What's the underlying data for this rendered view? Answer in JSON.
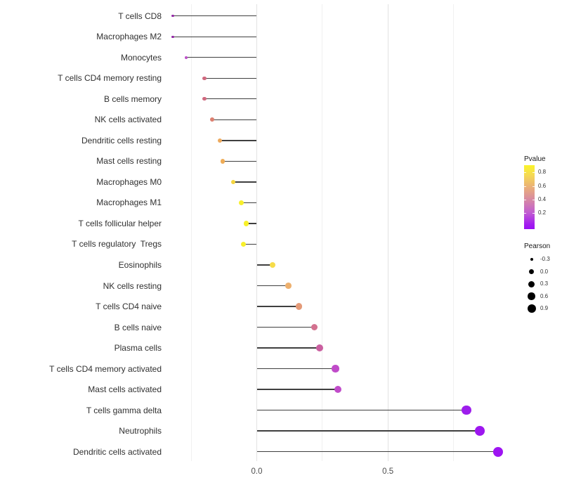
{
  "chart_data": {
    "type": "scatter",
    "style": "lollipop",
    "title": "",
    "xlabel": "",
    "ylabel": "",
    "xlim": [
      -0.35,
      0.97
    ],
    "grid": "vertical-only",
    "x_ticks": [
      {
        "value": 0.0,
        "label": "0.0"
      },
      {
        "value": 0.5,
        "label": "0.5"
      }
    ],
    "x_minor_gridlines": [
      -0.25,
      0.25,
      0.75
    ],
    "points": [
      {
        "label": "T cells CD8",
        "pearson": -0.32,
        "pvalue": 0.08,
        "color": "#9327A4"
      },
      {
        "label": "Macrophages M2",
        "pearson": -0.32,
        "pvalue": 0.08,
        "color": "#9327A4"
      },
      {
        "label": "Monocytes",
        "pearson": -0.27,
        "pvalue": 0.2,
        "color": "#BB50C8"
      },
      {
        "label": "T cells CD4 memory resting",
        "pearson": -0.2,
        "pvalue": 0.45,
        "color": "#CF697F"
      },
      {
        "label": "B cells memory",
        "pearson": -0.2,
        "pvalue": 0.45,
        "color": "#CF697F"
      },
      {
        "label": "NK cells activated",
        "pearson": -0.17,
        "pvalue": 0.52,
        "color": "#DC8070"
      },
      {
        "label": "Dendritic cells resting",
        "pearson": -0.14,
        "pvalue": 0.62,
        "color": "#EDA95E"
      },
      {
        "label": "Mast cells resting",
        "pearson": -0.13,
        "pvalue": 0.63,
        "color": "#EFAC57"
      },
      {
        "label": "Macrophages M0",
        "pearson": -0.09,
        "pvalue": 0.75,
        "color": "#F4D53F"
      },
      {
        "label": "Macrophages M1",
        "pearson": -0.06,
        "pvalue": 0.85,
        "color": "#F8EF2B"
      },
      {
        "label": "T cells follicular helper",
        "pearson": -0.04,
        "pvalue": 0.85,
        "color": "#F8F02A"
      },
      {
        "label": "T cells regulatory  Tregs",
        "pearson": -0.05,
        "pvalue": 0.85,
        "color": "#F8F02A"
      },
      {
        "label": "Eosinophils",
        "pearson": 0.06,
        "pvalue": 0.78,
        "color": "#F6DC49"
      },
      {
        "label": "NK cells resting",
        "pearson": 0.12,
        "pvalue": 0.63,
        "color": "#EDB06E"
      },
      {
        "label": "T cells CD4 naive",
        "pearson": 0.16,
        "pvalue": 0.55,
        "color": "#E49A78"
      },
      {
        "label": "B cells naive",
        "pearson": 0.22,
        "pvalue": 0.44,
        "color": "#D3718F"
      },
      {
        "label": "Plasma cells",
        "pearson": 0.24,
        "pvalue": 0.36,
        "color": "#CA5FA0"
      },
      {
        "label": "T cells CD4 memory activated",
        "pearson": 0.3,
        "pvalue": 0.25,
        "color": "#C04BC9"
      },
      {
        "label": "Mast cells activated",
        "pearson": 0.31,
        "pvalue": 0.25,
        "color": "#C04BC9"
      },
      {
        "label": "T cells gamma delta",
        "pearson": 0.8,
        "pvalue": 0.03,
        "color": "#9D1DEC"
      },
      {
        "label": "Neutrophils",
        "pearson": 0.85,
        "pvalue": 0.02,
        "color": "#9D17EF"
      },
      {
        "label": "Dendritic cells activated",
        "pearson": 0.92,
        "pvalue": 0.02,
        "color": "#9E14F2"
      }
    ],
    "legend_pvalue": {
      "title": "Pvalue",
      "ticks": [
        "0.8",
        "0.6",
        "0.4",
        "0.2"
      ],
      "range": [
        0,
        0.91
      ],
      "gradient_top_to_bottom": [
        "#FAF42A",
        "#F5D855",
        "#E9AC7C",
        "#D687A6",
        "#C05BD3",
        "#A21BEF",
        "#9A0FF4"
      ]
    },
    "legend_pearson": {
      "title": "Pearson",
      "items": [
        "-0.3",
        "0.0",
        "0.3",
        "0.6",
        "0.9"
      ]
    }
  },
  "colors": {
    "background": "#FFFFFF",
    "segment": "#3F3F3F",
    "grid_major": "#E2E2E2",
    "grid_minor": "#F0F0F0",
    "row_label": "#303030",
    "axis_tick_label": "#4D4D4D",
    "legend_dot": "#000000"
  }
}
